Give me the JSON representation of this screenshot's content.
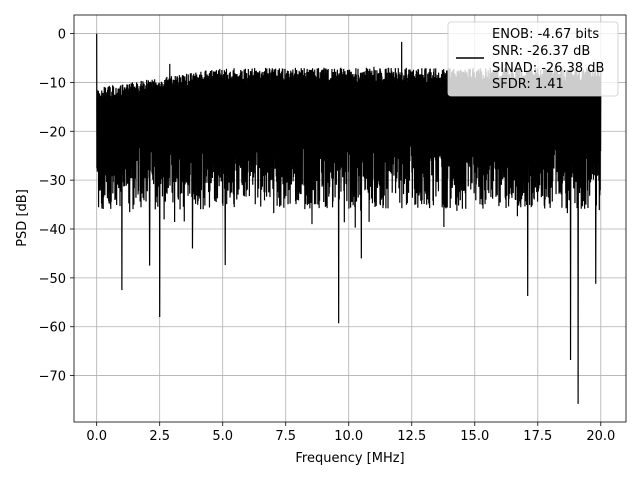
{
  "chart_data": {
    "type": "line",
    "title": "",
    "xlabel": "Frequency [MHz]",
    "ylabel": "PSD [dB]",
    "xlim": [
      -0.9,
      21.0
    ],
    "ylim": [
      -79.5,
      3.8
    ],
    "xticks": [
      0.0,
      2.5,
      5.0,
      7.5,
      10.0,
      12.5,
      15.0,
      17.5,
      20.0
    ],
    "xtick_labels": [
      "0.0",
      "2.5",
      "5.0",
      "7.5",
      "10.0",
      "12.5",
      "15.0",
      "17.5",
      "20.0"
    ],
    "yticks": [
      0,
      -10,
      -20,
      -30,
      -40,
      -50,
      -60,
      -70
    ],
    "ytick_labels": [
      "0",
      "−10",
      "−20",
      "−30",
      "−40",
      "−50",
      "−60",
      "−70"
    ],
    "grid": true,
    "legend_position": "top-right",
    "line_color": "#000000",
    "legend_lines": [
      "ENOB: -4.67 bits",
      "SNR: -26.37 dB",
      "SINAD: -26.38 dB",
      "SFDR: 1.41"
    ],
    "series": [
      {
        "x_range": [
          0.0,
          20.0
        ],
        "peak": [
          0.0,
          0.0
        ],
        "dips": [
          [
            1.0,
            -52.5
          ],
          [
            2.5,
            -58.0
          ],
          [
            9.6,
            -59.3
          ],
          [
            17.1,
            -53.7
          ],
          [
            18.8,
            -66.8
          ],
          [
            19.1,
            -75.8
          ],
          [
            19.8,
            -51.2
          ],
          [
            2.1,
            -47.5
          ],
          [
            5.1,
            -47.4
          ],
          [
            3.8,
            -44.0
          ],
          [
            10.5,
            -46.0
          ]
        ],
        "spikes": [
          [
            12.1,
            -1.7
          ],
          [
            2.9,
            -6.2
          ],
          [
            11.0,
            -6.8
          ]
        ]
      }
    ]
  }
}
